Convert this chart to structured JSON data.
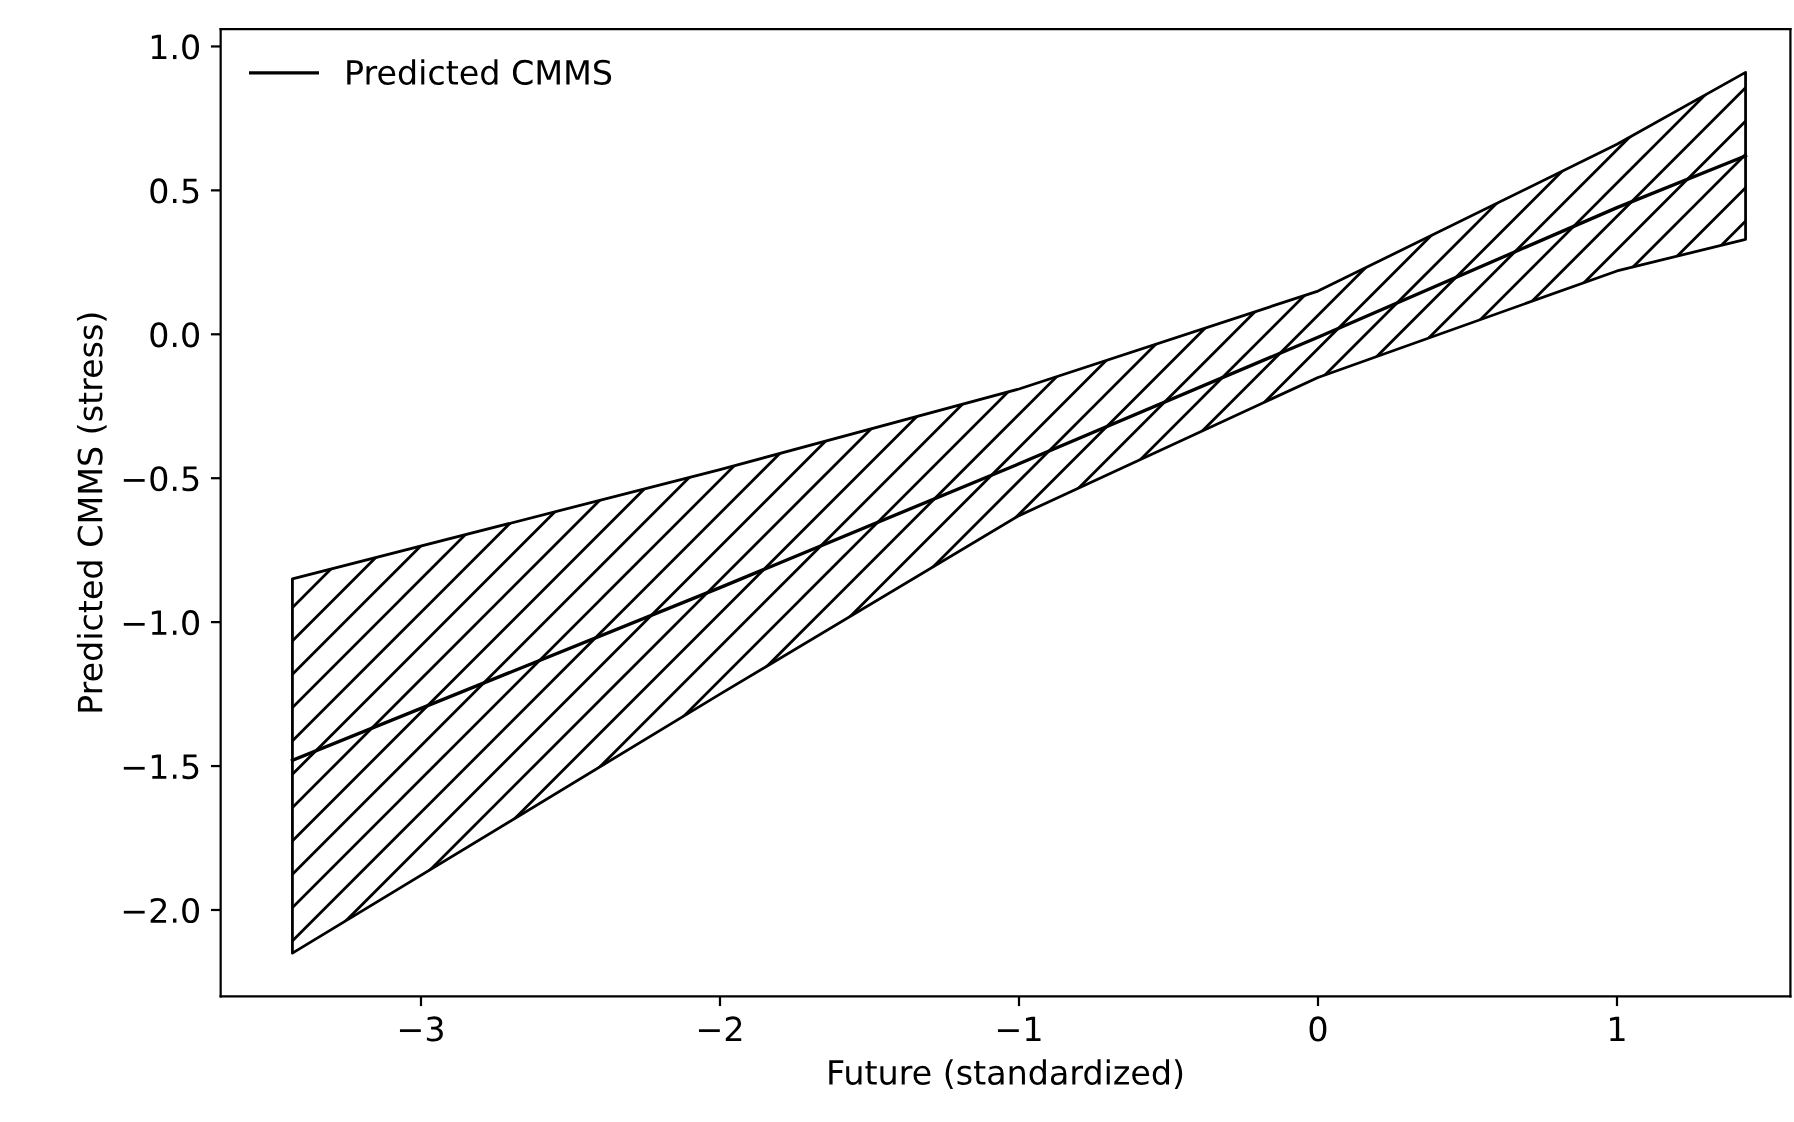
{
  "chart_data": {
    "type": "line",
    "xlabel": "Future (standardized)",
    "ylabel": "Predicted CMMS (stress)",
    "xlim": [
      -3.67,
      1.58
    ],
    "ylim": [
      -2.3,
      1.06
    ],
    "xticks": [
      {
        "value": -3,
        "label": "−3"
      },
      {
        "value": -2,
        "label": "−2"
      },
      {
        "value": -1,
        "label": "−1"
      },
      0,
      1
    ],
    "yticks": [
      {
        "value": -2,
        "label": "−2.0"
      },
      {
        "value": -1.5,
        "label": "−1.5"
      },
      {
        "value": -1,
        "label": "−1.0"
      },
      {
        "value": -0.5,
        "label": "−0.5"
      },
      {
        "value": 0,
        "label": "0.0"
      },
      {
        "value": 0.5,
        "label": "0.5"
      },
      {
        "value": 1,
        "label": "1.0"
      }
    ],
    "grid": false,
    "legend": "top left",
    "marker": "none",
    "line_style": "solid",
    "series": [
      {
        "name": "Predicted CMMS",
        "color": "#000000",
        "x": [
          -3.43,
          -2,
          -1,
          0,
          1,
          1.43
        ],
        "values": [
          -1.48,
          -0.88,
          -0.45,
          -0.01,
          0.44,
          0.62
        ],
        "lower": [
          -2.15,
          -1.25,
          -0.63,
          -0.15,
          0.22,
          0.33
        ],
        "upper": [
          -0.85,
          -0.47,
          -0.19,
          0.15,
          0.66,
          0.91
        ]
      }
    ]
  }
}
